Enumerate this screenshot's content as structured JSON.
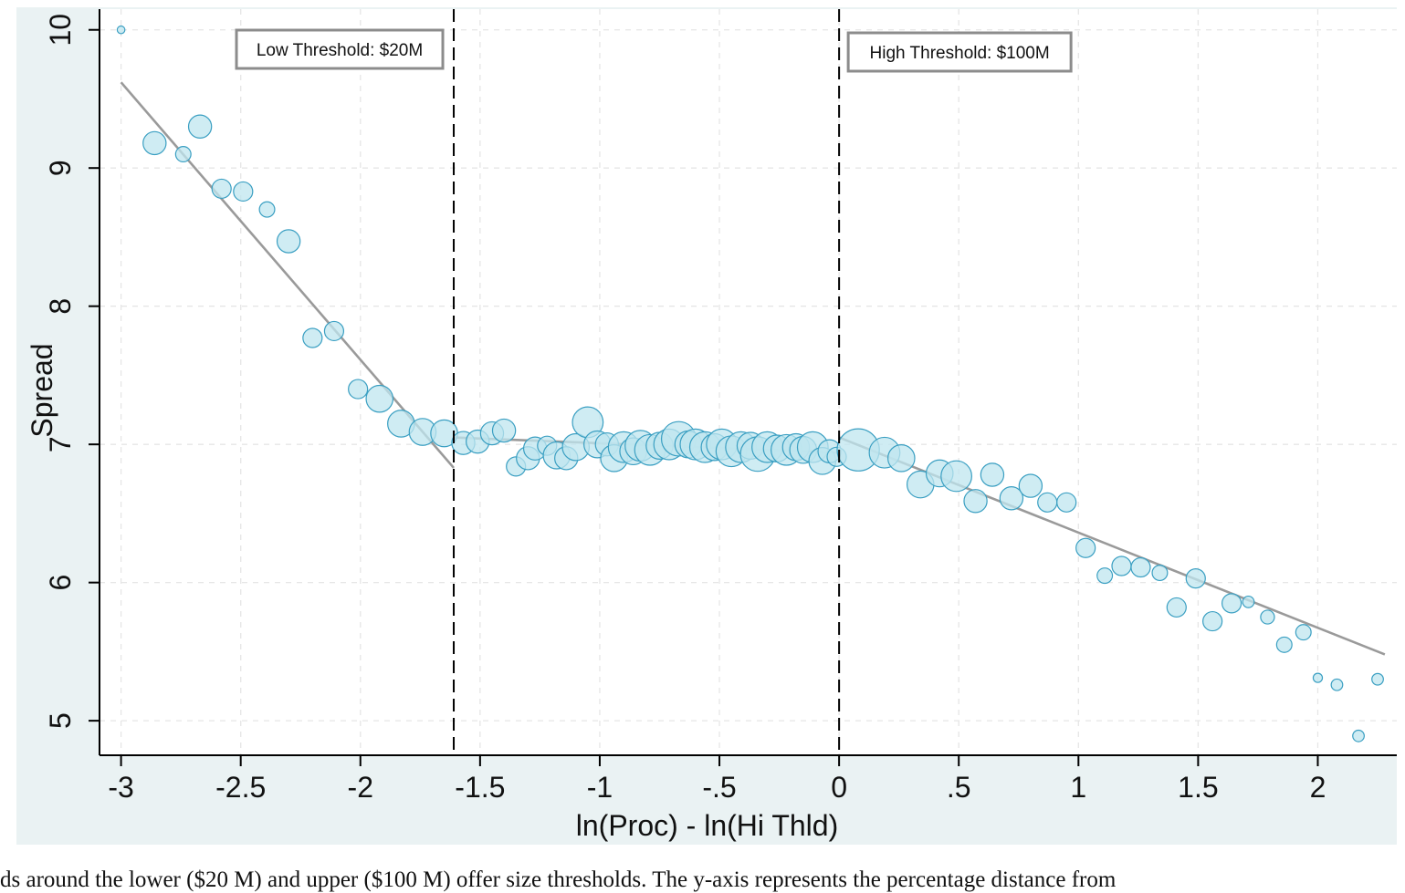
{
  "caption": "ds around the lower ($20 M) and upper ($100 M) offer size thresholds. The y-axis represents the percentage distance from",
  "chart_data": {
    "type": "scatter",
    "xlabel": "ln(Proc) - ln(Hi Thld)",
    "ylabel": "Spread",
    "xlim": [
      -3.09,
      2.33
    ],
    "ylim": [
      4.75,
      10.15
    ],
    "x_ticks": [
      -3,
      -2.5,
      -2,
      -1.5,
      -1,
      -0.5,
      0,
      0.5,
      1,
      1.5,
      2
    ],
    "x_tick_labels": [
      "-3",
      "-2.5",
      "-2",
      "-1.5",
      "-1",
      "-.5",
      "0",
      ".5",
      "1",
      "1.5",
      "2"
    ],
    "y_ticks": [
      5,
      6,
      7,
      8,
      9,
      10
    ],
    "y_tick_labels": [
      "5",
      "6",
      "7",
      "8",
      "9",
      "10"
    ],
    "grid": true,
    "colors": {
      "marker_fill": "#bfe6ef",
      "marker_stroke": "#3a9fc2",
      "fit_line": "#9a9a9a",
      "threshold_line": "#000000",
      "panel": "#eaf2f3",
      "plot_bg": "#ffffff"
    },
    "thresholds": [
      {
        "x": -1.61,
        "label": "Low Threshold: $20M"
      },
      {
        "x": 0,
        "label": "High Threshold: $100M"
      }
    ],
    "fit_lines": [
      {
        "x": [
          -3.0,
          -1.61
        ],
        "y": [
          9.62,
          6.83
        ]
      },
      {
        "x": [
          -1.61,
          0.0
        ],
        "y": [
          7.05,
          6.94
        ]
      },
      {
        "x": [
          0.0,
          2.28
        ],
        "y": [
          7.05,
          5.48
        ]
      }
    ],
    "points_note": "each point: [x, spread, marker size]",
    "points": [
      [
        -3.0,
        10.0,
        1
      ],
      [
        -2.86,
        9.18,
        3
      ],
      [
        -2.74,
        9.1,
        2
      ],
      [
        -2.67,
        9.3,
        3
      ],
      [
        -2.58,
        8.85,
        2.5
      ],
      [
        -2.49,
        8.83,
        2.5
      ],
      [
        -2.39,
        8.7,
        2
      ],
      [
        -2.3,
        8.47,
        3
      ],
      [
        -2.2,
        7.77,
        2.5
      ],
      [
        -2.11,
        7.82,
        2.5
      ],
      [
        -2.01,
        7.4,
        2.5
      ],
      [
        -1.92,
        7.33,
        3.5
      ],
      [
        -1.83,
        7.15,
        3.5
      ],
      [
        -1.74,
        7.09,
        3.5
      ],
      [
        -1.65,
        7.08,
        3.5
      ],
      [
        -1.57,
        7.01,
        3
      ],
      [
        -1.51,
        7.02,
        3
      ],
      [
        -1.45,
        7.08,
        3
      ],
      [
        -1.4,
        7.1,
        3
      ],
      [
        -1.35,
        6.84,
        2.5
      ],
      [
        -1.3,
        6.9,
        3
      ],
      [
        -1.27,
        6.97,
        3
      ],
      [
        -1.22,
        6.99,
        2.5
      ],
      [
        -1.18,
        6.92,
        3.5
      ],
      [
        -1.14,
        6.9,
        3
      ],
      [
        -1.1,
        6.98,
        3.5
      ],
      [
        -1.05,
        7.16,
        4
      ],
      [
        -1.01,
        7.0,
        3.5
      ],
      [
        -0.97,
        7.0,
        3
      ],
      [
        -0.94,
        6.9,
        3.5
      ],
      [
        -0.9,
        6.98,
        4
      ],
      [
        -0.86,
        6.95,
        3.5
      ],
      [
        -0.83,
        6.99,
        4
      ],
      [
        -0.79,
        6.96,
        4
      ],
      [
        -0.75,
        6.99,
        3.5
      ],
      [
        -0.71,
        7.0,
        4
      ],
      [
        -0.67,
        7.04,
        4.5
      ],
      [
        -0.63,
        7.0,
        3.5
      ],
      [
        -0.6,
        7.0,
        4
      ],
      [
        -0.56,
        6.98,
        4
      ],
      [
        -0.52,
        6.98,
        3.5
      ],
      [
        -0.49,
        7.0,
        4
      ],
      [
        -0.45,
        6.95,
        4
      ],
      [
        -0.41,
        6.98,
        4
      ],
      [
        -0.37,
        6.99,
        3.5
      ],
      [
        -0.34,
        6.93,
        4.5
      ],
      [
        -0.3,
        6.98,
        4
      ],
      [
        -0.26,
        6.97,
        3.5
      ],
      [
        -0.22,
        6.96,
        4
      ],
      [
        -0.18,
        6.98,
        3.5
      ],
      [
        -0.15,
        6.96,
        3.5
      ],
      [
        -0.11,
        6.98,
        4
      ],
      [
        -0.07,
        6.88,
        3.5
      ],
      [
        -0.04,
        6.95,
        3
      ],
      [
        -0.01,
        6.91,
        2.5
      ],
      [
        0.08,
        6.96,
        5.5
      ],
      [
        0.19,
        6.94,
        4
      ],
      [
        0.26,
        6.9,
        3.5
      ],
      [
        0.34,
        6.71,
        3.5
      ],
      [
        0.42,
        6.79,
        3.5
      ],
      [
        0.49,
        6.77,
        4
      ],
      [
        0.57,
        6.59,
        3
      ],
      [
        0.64,
        6.78,
        3
      ],
      [
        0.72,
        6.61,
        3
      ],
      [
        0.8,
        6.7,
        3
      ],
      [
        0.87,
        6.58,
        2.5
      ],
      [
        0.95,
        6.58,
        2.5
      ],
      [
        1.03,
        6.25,
        2.5
      ],
      [
        1.11,
        6.05,
        2
      ],
      [
        1.18,
        6.12,
        2.5
      ],
      [
        1.26,
        6.11,
        2.5
      ],
      [
        1.34,
        6.07,
        2
      ],
      [
        1.41,
        5.82,
        2.5
      ],
      [
        1.49,
        6.03,
        2.5
      ],
      [
        1.56,
        5.72,
        2.5
      ],
      [
        1.64,
        5.85,
        2.5
      ],
      [
        1.71,
        5.86,
        1.5
      ],
      [
        1.79,
        5.75,
        1.8
      ],
      [
        1.86,
        5.55,
        2
      ],
      [
        1.94,
        5.64,
        2
      ],
      [
        2.0,
        5.31,
        1.2
      ],
      [
        2.08,
        5.26,
        1.5
      ],
      [
        2.17,
        4.89,
        1.5
      ],
      [
        2.25,
        5.3,
        1.5
      ]
    ]
  }
}
